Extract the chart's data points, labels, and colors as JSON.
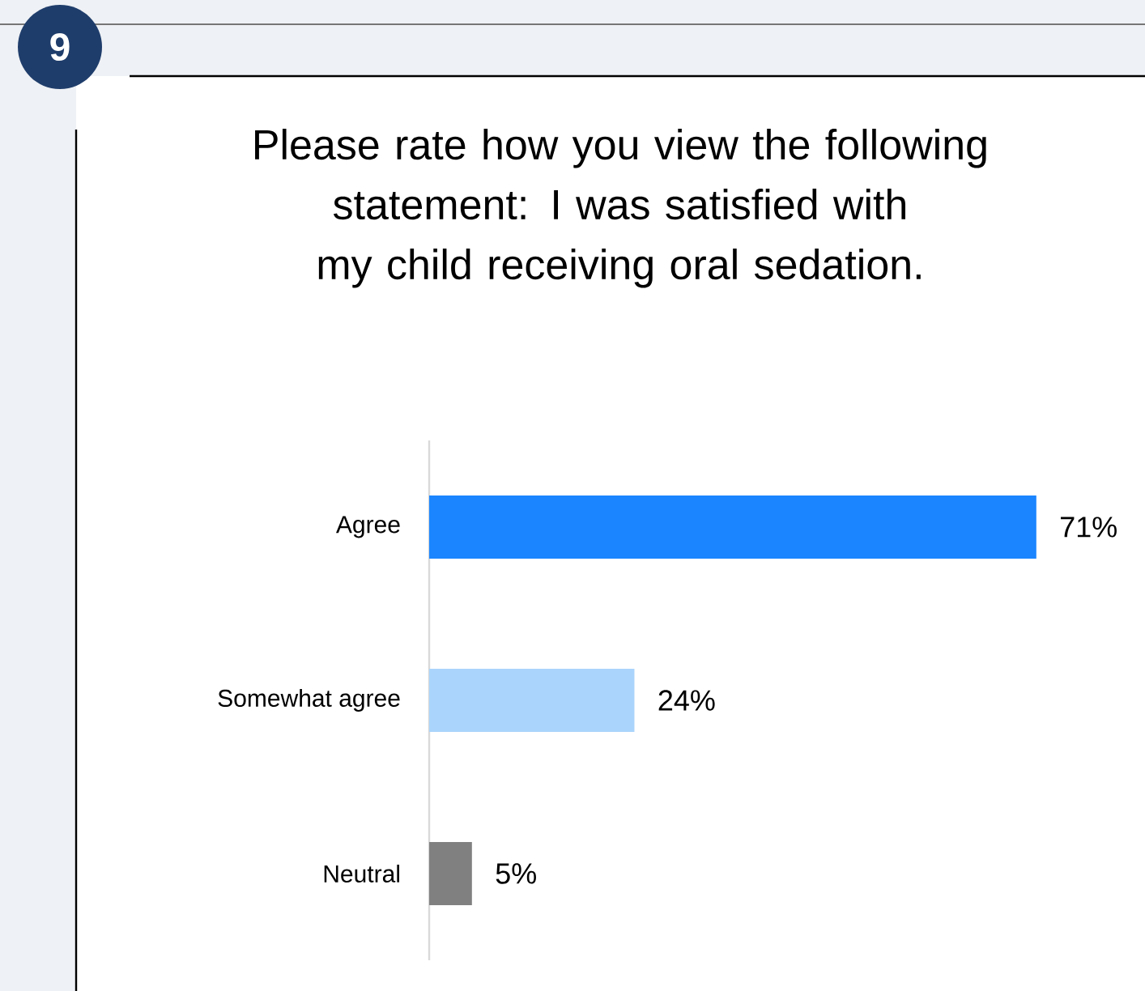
{
  "chart_data": {
    "type": "bar",
    "orientation": "horizontal",
    "title": "Please rate how you view the following statement: I was satisfied with my child receiving oral sedation.",
    "categories": [
      "Agree",
      "Somewhat agree",
      "Neutral"
    ],
    "values": [
      71,
      24,
      5
    ],
    "colors": [
      "#1a85ff",
      "#aad4fb",
      "#808080"
    ],
    "value_labels": [
      "71%",
      "24%",
      "5%"
    ],
    "annotations": [
      "9"
    ]
  }
}
